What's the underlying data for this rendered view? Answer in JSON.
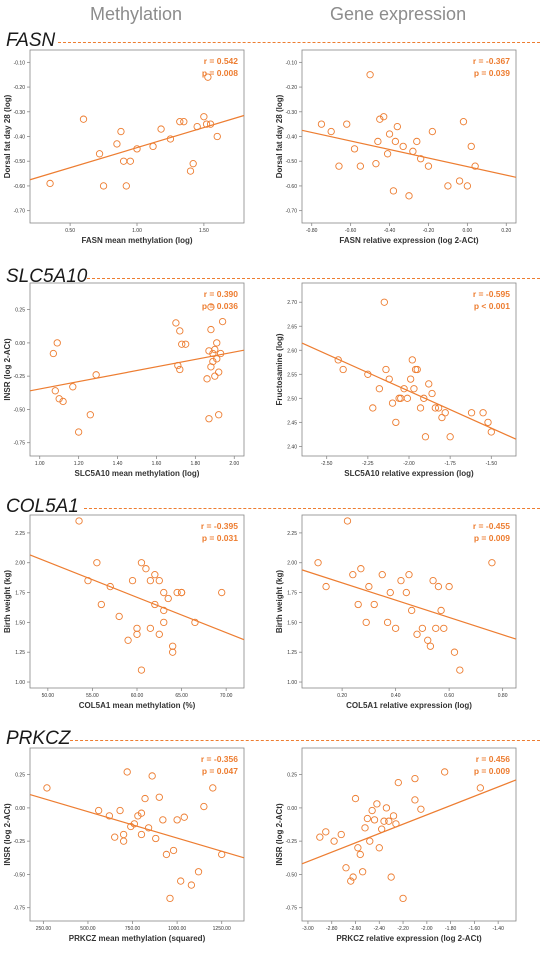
{
  "headers": {
    "left": "Methylation",
    "right": "Gene expression"
  },
  "colors": {
    "accent": "#ED7D31",
    "stat_text": "#ED7D31",
    "axis": "#888888",
    "label": "#333333"
  },
  "sections": [
    {
      "gene": "FASN"
    },
    {
      "gene": "SLC5A10"
    },
    {
      "gene": "COL5A1"
    },
    {
      "gene": "PRKCZ"
    }
  ],
  "chart_data": [
    {
      "type": "scatter",
      "gene": "FASN",
      "xlabel": "FASN mean methylation (log)",
      "ylabel": "Dorsal fat day 28 (log)",
      "xlim": [
        0.2,
        1.8
      ],
      "ylim": [
        -0.75,
        -0.05
      ],
      "xticks": [
        0.5,
        1.0,
        1.5
      ],
      "xtick_labels": [
        "0.50",
        "1.00",
        "1.50"
      ],
      "yticks": [
        -0.1,
        -0.2,
        -0.3,
        -0.4,
        -0.5,
        -0.6,
        -0.7
      ],
      "ytick_labels": [
        "-0.10",
        "-0.20",
        "-0.30",
        "-0.40",
        "-0.50",
        "-0.60",
        "-0.70"
      ],
      "r": "r = 0.542",
      "p": "p = 0.008",
      "x": [
        0.35,
        0.6,
        0.72,
        0.75,
        0.85,
        0.88,
        0.9,
        0.92,
        0.95,
        1.0,
        1.12,
        1.18,
        1.25,
        1.32,
        1.35,
        1.4,
        1.45,
        1.5,
        1.52,
        1.53,
        1.6,
        1.42,
        1.55
      ],
      "y": [
        -0.59,
        -0.33,
        -0.47,
        -0.6,
        -0.43,
        -0.38,
        -0.5,
        -0.6,
        -0.5,
        -0.45,
        -0.44,
        -0.37,
        -0.41,
        -0.34,
        -0.34,
        -0.54,
        -0.36,
        -0.32,
        -0.35,
        -0.16,
        -0.4,
        -0.51,
        -0.35
      ],
      "fit": [
        [
          0.2,
          -0.575
        ],
        [
          1.8,
          -0.315
        ]
      ]
    },
    {
      "type": "scatter",
      "gene": "FASN",
      "xlabel": "FASN relative expression (log 2-ACt)",
      "ylabel": "Dorsal fat day 28 (log)",
      "xlim": [
        -0.85,
        0.25
      ],
      "ylim": [
        -0.75,
        -0.05
      ],
      "xticks": [
        -0.8,
        -0.6,
        -0.4,
        -0.2,
        0.0,
        0.2
      ],
      "xtick_labels": [
        "-0.80",
        "-0.60",
        "-0.40",
        "-0.20",
        "0.00",
        "0.20"
      ],
      "yticks": [
        -0.1,
        -0.2,
        -0.3,
        -0.4,
        -0.5,
        -0.6,
        -0.7
      ],
      "ytick_labels": [
        "-0.10",
        "-0.20",
        "-0.30",
        "-0.40",
        "-0.50",
        "-0.60",
        "-0.70"
      ],
      "r": "r = -0.367",
      "p": "p = 0.039",
      "x": [
        -0.75,
        -0.7,
        -0.66,
        -0.62,
        -0.58,
        -0.55,
        -0.5,
        -0.47,
        -0.46,
        -0.43,
        -0.41,
        -0.4,
        -0.38,
        -0.37,
        -0.36,
        -0.33,
        -0.3,
        -0.28,
        -0.26,
        -0.24,
        -0.2,
        -0.18,
        -0.1,
        -0.04,
        -0.02,
        0.0,
        0.02,
        0.04,
        -0.45
      ],
      "y": [
        -0.35,
        -0.38,
        -0.52,
        -0.35,
        -0.45,
        -0.52,
        -0.15,
        -0.51,
        -0.42,
        -0.32,
        -0.47,
        -0.39,
        -0.62,
        -0.42,
        -0.36,
        -0.44,
        -0.64,
        -0.46,
        -0.42,
        -0.49,
        -0.52,
        -0.38,
        -0.6,
        -0.58,
        -0.34,
        -0.6,
        -0.44,
        -0.52,
        -0.33
      ],
      "fit": [
        [
          -0.85,
          -0.375
        ],
        [
          0.25,
          -0.565
        ]
      ]
    },
    {
      "type": "scatter",
      "gene": "SLC5A10",
      "xlabel": "SLC5A10 mean methylation (log)",
      "ylabel": "INSR (log 2-ACt)",
      "xlim": [
        0.95,
        2.05
      ],
      "ylim": [
        -0.85,
        0.45
      ],
      "xticks": [
        1.0,
        1.2,
        1.4,
        1.6,
        1.8,
        2.0
      ],
      "xtick_labels": [
        "1.00",
        "1.20",
        "1.40",
        "1.60",
        "1.80",
        "2.00"
      ],
      "yticks": [
        0.25,
        0.0,
        -0.25,
        -0.5,
        -0.75
      ],
      "ytick_labels": [
        "0.25",
        "0.00",
        "-0.25",
        "-0.50",
        "-0.75"
      ],
      "r": "r = 0.390",
      "p": "p = 0.036",
      "x": [
        1.07,
        1.08,
        1.09,
        1.1,
        1.12,
        1.17,
        1.2,
        1.26,
        1.29,
        1.7,
        1.72,
        1.73,
        1.75,
        1.72,
        1.71,
        1.86,
        1.87,
        1.88,
        1.88,
        1.89,
        1.9,
        1.9,
        1.91,
        1.91,
        1.92,
        1.92,
        1.93,
        1.94,
        1.88,
        1.89,
        1.87
      ],
      "y": [
        -0.08,
        -0.36,
        0.0,
        -0.42,
        -0.44,
        -0.33,
        -0.67,
        -0.54,
        -0.24,
        0.15,
        0.09,
        -0.01,
        -0.01,
        -0.2,
        -0.17,
        -0.27,
        -0.57,
        -0.18,
        0.27,
        -0.08,
        -0.05,
        -0.25,
        -0.12,
        0.0,
        -0.22,
        -0.54,
        -0.08,
        0.16,
        0.1,
        -0.14,
        -0.06
      ],
      "fit": [
        [
          0.95,
          -0.36
        ],
        [
          2.05,
          -0.055
        ]
      ]
    },
    {
      "type": "scatter",
      "gene": "SLC5A10",
      "xlabel": "SLC5A10 relative expression (log)",
      "ylabel": "Fructosamine (log)",
      "xlim": [
        -2.65,
        -1.35
      ],
      "ylim": [
        2.38,
        2.74
      ],
      "xticks": [
        -2.5,
        -2.25,
        -2.0,
        -1.75,
        -1.5
      ],
      "xtick_labels": [
        "-2.50",
        "-2.25",
        "-2.00",
        "-1.75",
        "-1.50"
      ],
      "yticks": [
        2.7,
        2.65,
        2.6,
        2.55,
        2.5,
        2.45,
        2.4
      ],
      "ytick_labels": [
        "2.70",
        "2.65",
        "2.60",
        "2.55",
        "2.50",
        "2.45",
        "2.40"
      ],
      "r": "r = -0.595",
      "p": "p < 0.001",
      "x": [
        -2.43,
        -2.4,
        -2.25,
        -2.22,
        -2.18,
        -2.14,
        -2.12,
        -2.1,
        -2.08,
        -2.06,
        -2.05,
        -2.03,
        -2.01,
        -1.99,
        -1.98,
        -1.97,
        -1.96,
        -1.95,
        -1.93,
        -1.91,
        -1.9,
        -1.88,
        -1.86,
        -1.84,
        -1.82,
        -1.8,
        -1.78,
        -1.75,
        -1.62,
        -1.55,
        -1.52,
        -1.5,
        -2.15
      ],
      "y": [
        2.58,
        2.56,
        2.55,
        2.48,
        2.52,
        2.56,
        2.54,
        2.49,
        2.45,
        2.5,
        2.5,
        2.52,
        2.5,
        2.54,
        2.58,
        2.52,
        2.56,
        2.56,
        2.48,
        2.5,
        2.42,
        2.53,
        2.51,
        2.48,
        2.48,
        2.46,
        2.47,
        2.42,
        2.47,
        2.47,
        2.45,
        2.43,
        2.7
      ],
      "fit": [
        [
          -2.65,
          2.615
        ],
        [
          -1.35,
          2.415
        ]
      ]
    },
    {
      "type": "scatter",
      "gene": "COL5A1",
      "xlabel": "COL5A1 mean methylation (%)",
      "ylabel": "Birth weight (kg)",
      "xlim": [
        48,
        72
      ],
      "ylim": [
        0.95,
        2.4
      ],
      "xticks": [
        50,
        55,
        60,
        65,
        70
      ],
      "xtick_labels": [
        "50.00",
        "55.00",
        "60.00",
        "65.00",
        "70.00"
      ],
      "yticks": [
        2.25,
        2.0,
        1.75,
        1.5,
        1.25,
        1.0
      ],
      "ytick_labels": [
        "2.25",
        "2.00",
        "1.75",
        "1.50",
        "1.25",
        "1.00"
      ],
      "r": "r = -0.395",
      "p": "p = 0.031",
      "x": [
        53.5,
        54.5,
        55.5,
        56,
        57,
        58,
        59,
        59.5,
        60,
        60,
        60.5,
        61,
        61.5,
        61.5,
        62,
        62,
        62.5,
        63,
        63,
        63,
        63.5,
        64,
        64,
        64.5,
        65,
        65,
        66.5,
        69.5,
        60.5,
        62.5
      ],
      "y": [
        2.35,
        1.85,
        2.0,
        1.65,
        1.8,
        1.55,
        1.35,
        1.85,
        1.4,
        1.45,
        2.0,
        1.95,
        1.45,
        1.85,
        1.65,
        1.9,
        1.4,
        1.6,
        1.75,
        1.5,
        1.7,
        1.25,
        1.3,
        1.75,
        1.75,
        1.75,
        1.5,
        1.75,
        1.1,
        1.85
      ],
      "fit": [
        [
          48,
          2.065
        ],
        [
          72,
          1.355
        ]
      ]
    },
    {
      "type": "scatter",
      "gene": "COL5A1",
      "xlabel": "COL5A1 relative expression (log)",
      "ylabel": "Birth weight (kg)",
      "xlim": [
        0.05,
        0.85
      ],
      "ylim": [
        0.95,
        2.4
      ],
      "xticks": [
        0.2,
        0.4,
        0.6,
        0.8
      ],
      "xtick_labels": [
        "0.20",
        "0.40",
        "0.60",
        "0.80"
      ],
      "yticks": [
        2.25,
        2.0,
        1.75,
        1.5,
        1.25,
        1.0
      ],
      "ytick_labels": [
        "2.25",
        "2.00",
        "1.75",
        "1.50",
        "1.25",
        "1.00"
      ],
      "r": "r = -0.455",
      "p": "p = 0.009",
      "x": [
        0.11,
        0.14,
        0.22,
        0.24,
        0.26,
        0.27,
        0.29,
        0.3,
        0.32,
        0.35,
        0.37,
        0.38,
        0.4,
        0.42,
        0.44,
        0.46,
        0.48,
        0.5,
        0.52,
        0.53,
        0.55,
        0.56,
        0.58,
        0.6,
        0.62,
        0.64,
        0.76,
        0.45,
        0.54,
        0.57
      ],
      "y": [
        2.0,
        1.8,
        2.35,
        1.9,
        1.65,
        1.95,
        1.5,
        1.8,
        1.65,
        1.9,
        1.5,
        1.75,
        1.45,
        1.85,
        1.75,
        1.6,
        1.4,
        1.45,
        1.35,
        1.3,
        1.45,
        1.8,
        1.45,
        1.8,
        1.25,
        1.1,
        2.0,
        1.9,
        1.85,
        1.6
      ],
      "fit": [
        [
          0.05,
          1.94
        ],
        [
          0.85,
          1.36
        ]
      ]
    },
    {
      "type": "scatter",
      "gene": "PRKCZ",
      "xlabel": "PRKCZ mean methylation (squared)",
      "ylabel": "INSR (log 2-ACt)",
      "xlim": [
        175,
        1375
      ],
      "ylim": [
        -0.85,
        0.45
      ],
      "xticks": [
        250,
        500,
        750,
        1000,
        1250
      ],
      "xtick_labels": [
        "250.00",
        "500.00",
        "750.00",
        "1000.00",
        "1250.00"
      ],
      "yticks": [
        0.25,
        0.0,
        -0.25,
        -0.5,
        -0.75
      ],
      "ytick_labels": [
        "0.25",
        "0.00",
        "-0.25",
        "-0.50",
        "-0.75"
      ],
      "r": "r = -0.356",
      "p": "p = 0.047",
      "x": [
        270,
        560,
        620,
        650,
        680,
        700,
        720,
        740,
        760,
        780,
        800,
        820,
        840,
        860,
        880,
        900,
        920,
        940,
        960,
        980,
        1000,
        1020,
        1040,
        1080,
        1120,
        1150,
        1200,
        1250,
        700,
        800
      ],
      "y": [
        0.15,
        -0.02,
        -0.06,
        -0.22,
        -0.02,
        -0.25,
        0.27,
        -0.14,
        -0.12,
        -0.06,
        -0.2,
        0.07,
        -0.15,
        0.24,
        -0.23,
        0.08,
        -0.09,
        -0.35,
        -0.68,
        -0.32,
        -0.09,
        -0.55,
        -0.07,
        -0.58,
        -0.48,
        0.01,
        0.15,
        -0.35,
        -0.2,
        -0.04
      ],
      "fit": [
        [
          175,
          0.1
        ],
        [
          1375,
          -0.375
        ]
      ]
    },
    {
      "type": "scatter",
      "gene": "PRKCZ",
      "xlabel": "PRKCZ relative expression (log 2-ACt)",
      "ylabel": "INSR (log 2-ACt)",
      "xlim": [
        -3.05,
        -1.25
      ],
      "ylim": [
        -0.85,
        0.45
      ],
      "xticks": [
        -3.0,
        -2.8,
        -2.6,
        -2.4,
        -2.2,
        -2.0,
        -1.8,
        -1.6,
        -1.4
      ],
      "xtick_labels": [
        "-3.00",
        "-2.80",
        "-2.60",
        "-2.40",
        "-2.20",
        "-2.00",
        "-1.80",
        "-1.60",
        "-1.40"
      ],
      "yticks": [
        0.25,
        0.0,
        -0.25,
        -0.5,
        -0.75
      ],
      "ytick_labels": [
        "0.25",
        "0.00",
        "-0.25",
        "-0.50",
        "-0.75"
      ],
      "r": "r = 0.456",
      "p": "p = 0.009",
      "x": [
        -2.9,
        -2.85,
        -2.78,
        -2.72,
        -2.68,
        -2.64,
        -2.62,
        -2.6,
        -2.58,
        -2.56,
        -2.54,
        -2.52,
        -2.5,
        -2.48,
        -2.46,
        -2.44,
        -2.42,
        -2.4,
        -2.38,
        -2.36,
        -2.34,
        -2.32,
        -2.3,
        -2.28,
        -2.26,
        -2.24,
        -2.2,
        -2.1,
        -2.1,
        -1.85,
        -1.55,
        -2.05
      ],
      "y": [
        -0.22,
        -0.18,
        -0.25,
        -0.2,
        -0.45,
        -0.55,
        -0.52,
        0.07,
        -0.3,
        -0.35,
        -0.48,
        -0.15,
        -0.08,
        -0.25,
        -0.02,
        -0.09,
        0.03,
        -0.3,
        -0.16,
        -0.1,
        0.0,
        -0.1,
        -0.52,
        -0.06,
        -0.12,
        0.19,
        -0.68,
        0.06,
        0.22,
        0.27,
        0.15,
        -0.01
      ],
      "fit": [
        [
          -3.05,
          -0.42
        ],
        [
          -1.25,
          0.21
        ]
      ]
    }
  ]
}
